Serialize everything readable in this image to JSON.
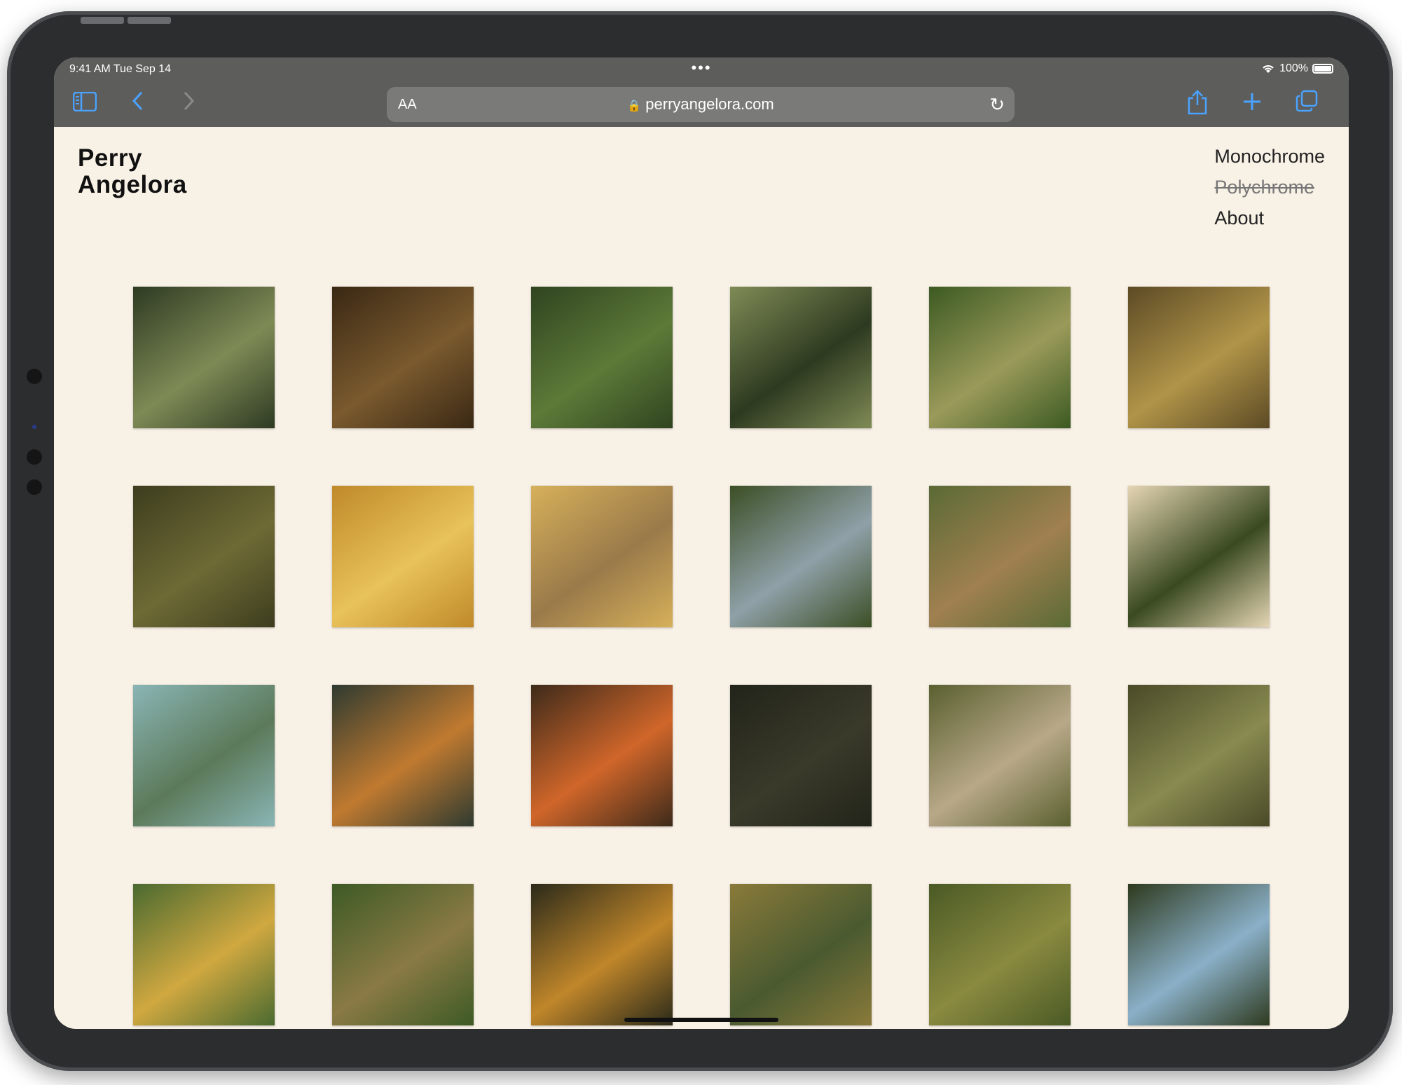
{
  "status": {
    "time": "9:41 AM   Tue Sep 14",
    "battery": "100%"
  },
  "browser": {
    "url": "perryangelora.com",
    "text_size": "AA"
  },
  "site": {
    "title_line1": "Perry",
    "title_line2": "Angelora",
    "nav": [
      "Monochrome",
      "Polychrome",
      "About"
    ]
  },
  "gallery_palettes": [
    [
      "#2e3a22",
      "#7e8a55"
    ],
    [
      "#3a2814",
      "#7a5a2e"
    ],
    [
      "#2f4420",
      "#5d7a38"
    ],
    [
      "#7f8b55",
      "#2e3a20"
    ],
    [
      "#3c5a22",
      "#9a9a5a"
    ],
    [
      "#5c4a25",
      "#b09448"
    ],
    [
      "#3d3d1e",
      "#6e6a35"
    ],
    [
      "#c08a2a",
      "#e8c25a"
    ],
    [
      "#d6b05a",
      "#9a7a4a"
    ],
    [
      "#3c4f25",
      "#8fa0a8"
    ],
    [
      "#5a6a35",
      "#a08050"
    ],
    [
      "#e5d5b5",
      "#3a4a20"
    ],
    [
      "#8ab5b5",
      "#5c7a5a"
    ],
    [
      "#2e3a30",
      "#c07a30"
    ],
    [
      "#3d2a1a",
      "#d0662a"
    ],
    [
      "#22241a",
      "#3a3a2a"
    ],
    [
      "#5a6030",
      "#b8a888"
    ],
    [
      "#4a4a28",
      "#888a50"
    ],
    [
      "#4a6a30",
      "#d0a840"
    ],
    [
      "#3d5a25",
      "#8a7a45"
    ],
    [
      "#2a2a1a",
      "#c0862a"
    ],
    [
      "#8a7a3a",
      "#4a5a30"
    ],
    [
      "#4a5a25",
      "#8a8a40"
    ],
    [
      "#2e3a1e",
      "#8ab0c8"
    ]
  ]
}
